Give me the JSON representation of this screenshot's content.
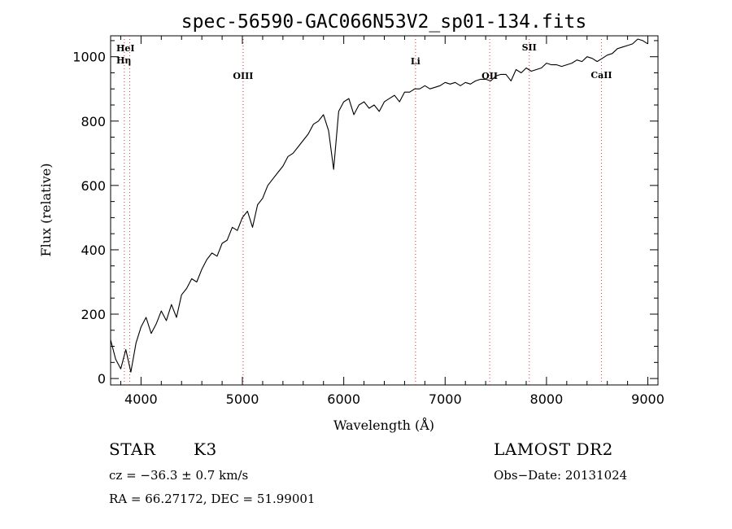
{
  "chart_data": {
    "type": "line",
    "title": "spec-56590-GAC066N53V2_sp01-134.fits",
    "xlabel": "Wavelength (Å)",
    "ylabel": "Flux (relative)",
    "xlim": [
      3700,
      9100
    ],
    "ylim": [
      -20,
      1065
    ],
    "x_ticks": [
      4000,
      5000,
      6000,
      7000,
      8000,
      9000
    ],
    "y_ticks": [
      0,
      200,
      400,
      600,
      800,
      1000
    ],
    "grid": false,
    "series": [
      {
        "color": "#000000",
        "x": [
          3700,
          3750,
          3800,
          3850,
          3900,
          3950,
          4000,
          4050,
          4100,
          4150,
          4200,
          4250,
          4300,
          4350,
          4400,
          4450,
          4500,
          4550,
          4600,
          4650,
          4700,
          4750,
          4800,
          4850,
          4900,
          4950,
          5000,
          5050,
          5100,
          5150,
          5200,
          5250,
          5300,
          5350,
          5400,
          5450,
          5500,
          5550,
          5600,
          5650,
          5700,
          5750,
          5800,
          5850,
          5900,
          5950,
          6000,
          6050,
          6100,
          6150,
          6200,
          6250,
          6300,
          6350,
          6400,
          6450,
          6500,
          6550,
          6600,
          6650,
          6700,
          6750,
          6800,
          6850,
          6900,
          6950,
          7000,
          7050,
          7100,
          7150,
          7200,
          7250,
          7300,
          7350,
          7400,
          7450,
          7500,
          7550,
          7600,
          7650,
          7700,
          7750,
          7800,
          7850,
          7900,
          7950,
          8000,
          8050,
          8100,
          8150,
          8200,
          8250,
          8300,
          8350,
          8400,
          8450,
          8500,
          8550,
          8600,
          8650,
          8700,
          8750,
          8800,
          8850,
          8900,
          8950,
          9000
        ],
        "y": [
          120,
          60,
          30,
          90,
          20,
          110,
          160,
          190,
          140,
          170,
          210,
          180,
          230,
          190,
          260,
          280,
          310,
          300,
          340,
          370,
          390,
          380,
          420,
          430,
          470,
          460,
          500,
          520,
          470,
          540,
          560,
          600,
          620,
          640,
          660,
          690,
          700,
          720,
          740,
          760,
          790,
          800,
          820,
          770,
          650,
          830,
          860,
          870,
          820,
          850,
          860,
          840,
          850,
          830,
          860,
          870,
          880,
          860,
          890,
          890,
          900,
          900,
          910,
          900,
          905,
          910,
          920,
          915,
          920,
          910,
          920,
          915,
          925,
          930,
          930,
          925,
          940,
          945,
          945,
          925,
          960,
          950,
          965,
          955,
          960,
          965,
          980,
          975,
          975,
          970,
          975,
          980,
          990,
          985,
          1000,
          995,
          985,
          995,
          1005,
          1010,
          1025,
          1030,
          1035,
          1040,
          1055,
          1050,
          1040
        ]
      }
    ],
    "lines": [
      {
        "wavelength": 3889,
        "label": "HeI"
      },
      {
        "wavelength": 3835,
        "label": "Hη"
      },
      {
        "wavelength": 5007,
        "label": "OIII"
      },
      {
        "wavelength": 6708,
        "label": "Li"
      },
      {
        "wavelength": 7440,
        "label": "OII"
      },
      {
        "wavelength": 7830,
        "label": "SII"
      },
      {
        "wavelength": 8542,
        "label": "CaII"
      }
    ]
  },
  "info": {
    "class": "STAR",
    "subclass": "K3",
    "survey": "LAMOST DR2",
    "cz": "cz = −36.3 ± 0.7 km/s",
    "obs_date": "Obs−Date: 20131024",
    "coords": "RA =  66.27172, DEC =  51.99001"
  }
}
